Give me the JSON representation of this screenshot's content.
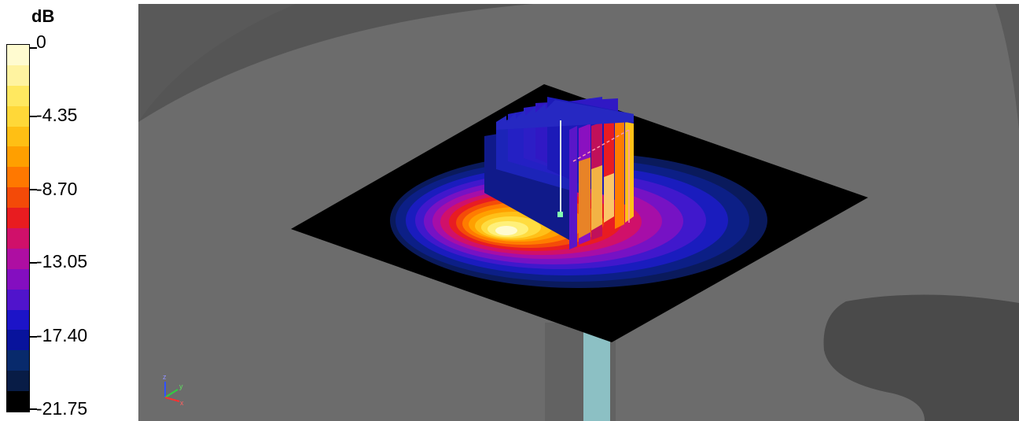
{
  "legend": {
    "unit": "dB",
    "labels": [
      "0",
      "-4.35",
      "-8.70",
      "-13.05",
      "-17.40",
      "-21.75"
    ],
    "colors": [
      "#fffbd0",
      "#fff3a0",
      "#ffe860",
      "#ffd838",
      "#ffbf14",
      "#ff9f00",
      "#ff7800",
      "#f34a08",
      "#e81c20",
      "#d0106a",
      "#ae0ea2",
      "#840ec0",
      "#5014cc",
      "#1c14c8",
      "#08139c",
      "#082a6c",
      "#081c46",
      "#000000"
    ]
  },
  "viewport": {
    "axis_labels": [
      "z",
      "y",
      "x"
    ],
    "colors": {
      "background": "#6c6c6c",
      "shadow": "#4a4a4a",
      "ground_plane": "#000000",
      "feed_post": "#8cc0c4"
    }
  }
}
